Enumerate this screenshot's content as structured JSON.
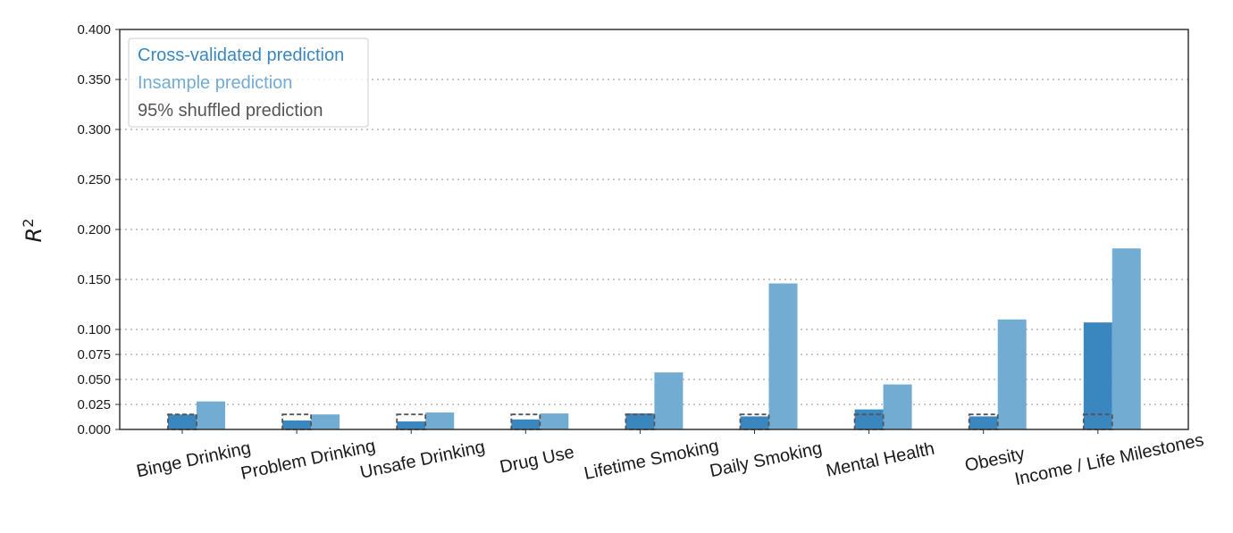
{
  "chart_data": {
    "type": "bar",
    "ylabel": "R",
    "ylabel_superscript": "2",
    "xlabel": "",
    "ylim": [
      0,
      0.4
    ],
    "yticks": [
      "0.000",
      "0.025",
      "0.050",
      "0.075",
      "0.100",
      "0.150",
      "0.200",
      "0.250",
      "0.300",
      "0.350",
      "0.400"
    ],
    "grid": true,
    "legend_position": "top-left",
    "categories": [
      "Binge Drinking",
      "Problem Drinking",
      "Unsafe Drinking",
      "Drug Use",
      "Lifetime Smoking",
      "Daily Smoking",
      "Mental Health",
      "Obesity",
      "Income / Life Milestones"
    ],
    "series": [
      {
        "name": "Cross-validated prediction",
        "color": "#3a87c0",
        "values": [
          0.015,
          0.009,
          0.008,
          0.01,
          0.016,
          0.013,
          0.02,
          0.013,
          0.107
        ]
      },
      {
        "name": "Insample prediction",
        "color": "#73acd3",
        "values": [
          0.028,
          0.015,
          0.017,
          0.016,
          0.057,
          0.146,
          0.045,
          0.11,
          0.181
        ]
      },
      {
        "name": "95% shuffled prediction",
        "color": "#555555",
        "style": "dashed",
        "values": [
          0.015,
          0.015,
          0.015,
          0.015,
          0.015,
          0.015,
          0.015,
          0.015,
          0.015
        ]
      }
    ]
  }
}
